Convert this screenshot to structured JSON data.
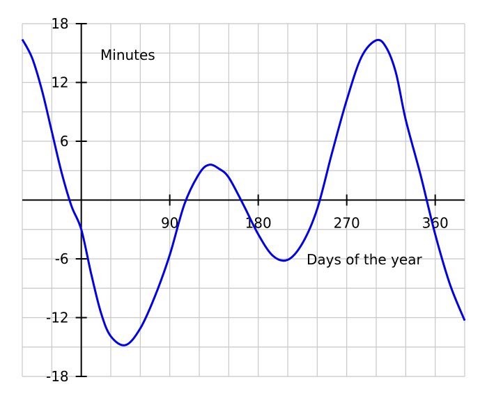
{
  "chart_data": {
    "type": "line",
    "title": "",
    "ylabel": "Minutes",
    "xlabel": "Days of the year",
    "xlim": [
      -60,
      390
    ],
    "ylim": [
      -18,
      18
    ],
    "x_ticks": [
      90,
      180,
      270,
      360
    ],
    "y_ticks": [
      -18,
      -12,
      -6,
      6,
      12,
      18
    ],
    "x_tick_labels": [
      "90",
      "180",
      "270",
      "360"
    ],
    "y_tick_labels": [
      "-18",
      "-12",
      "-6",
      "6",
      "12",
      "18"
    ],
    "x_grid_step": 30,
    "y_grid_step": 3,
    "grid": true,
    "series": [
      {
        "color": "#0000ee",
        "x": [
          -60,
          -50,
          -40,
          -30,
          -20,
          -10,
          0,
          10,
          20,
          30,
          45,
          60,
          75,
          90,
          105,
          120,
          130,
          140,
          150,
          165,
          180,
          195,
          210,
          225,
          240,
          255,
          270,
          285,
          300,
          310,
          320,
          330,
          345,
          360,
          375,
          390
        ],
        "y": [
          16.4,
          14.5,
          11.2,
          7.0,
          2.8,
          -0.6,
          -3.0,
          -7.5,
          -11.5,
          -13.9,
          -14.8,
          -13.1,
          -9.8,
          -5.6,
          -0.4,
          2.7,
          3.6,
          3.2,
          2.3,
          -0.5,
          -3.5,
          -5.7,
          -6.1,
          -4.4,
          -0.9,
          4.8,
          10.2,
          14.6,
          16.3,
          15.6,
          13.0,
          8.2,
          2.6,
          -3.5,
          -8.6,
          -12.3
        ]
      }
    ]
  }
}
